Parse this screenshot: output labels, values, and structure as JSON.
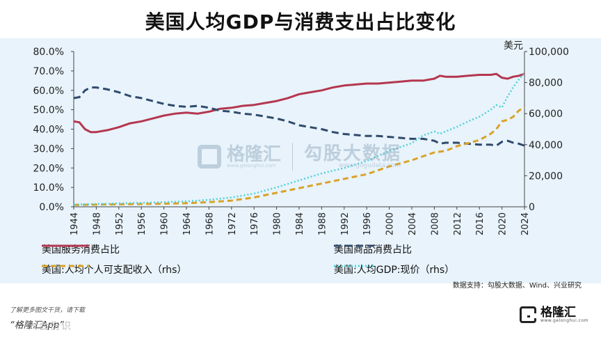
{
  "title": "美国人均GDP与消费支出占比变化",
  "unit_right": "美元",
  "source_note": "数据支持：勾股大数据、Wind、兴业研究",
  "watermark": {
    "brand_cn": "格隆汇",
    "brand_en": "www.gelonghui.com",
    "partner_cn": "勾股大数据",
    "partner_en": "www.gogudata.com"
  },
  "footer": {
    "hint": "了解更多图文干货，请下载",
    "app": "“格隆汇App”",
    "brand_faint": "人会伤识",
    "logo_cn": "格隆汇",
    "logo_en": "www.gelonghui.com"
  },
  "colors": {
    "services": "#b5364f",
    "goods": "#2f4a6b",
    "income": "#d9a228",
    "gdp": "#4fd1d9",
    "plot_bg": "#e8f3fb"
  },
  "chart_data": {
    "type": "line",
    "title": "美国人均GDP与消费支出占比变化",
    "x_ticks": [
      "1944",
      "1948",
      "1952",
      "1956",
      "1960",
      "1964",
      "1968",
      "1972",
      "1976",
      "1980",
      "1984",
      "1988",
      "1992",
      "1996",
      "2000",
      "2004",
      "2008",
      "2012",
      "2016",
      "2020",
      "2024"
    ],
    "xlim": [
      1944,
      2024
    ],
    "ylim_left": [
      0,
      80
    ],
    "ylim_right": [
      0,
      100000
    ],
    "y_ticks_left": [
      "0.0%",
      "10.0%",
      "20.0%",
      "30.0%",
      "40.0%",
      "50.0%",
      "60.0%",
      "70.0%",
      "80.0%"
    ],
    "y_ticks_right": [
      "0",
      "20,000",
      "40,000",
      "60,000",
      "80,000",
      "100,000"
    ],
    "legend_placement": "bottom",
    "series": [
      {
        "name": "美国服务消费占比",
        "axis": "left",
        "style": "solid",
        "x": [
          1944,
          1945,
          1946,
          1947,
          1948,
          1950,
          1952,
          1954,
          1956,
          1958,
          1960,
          1962,
          1964,
          1966,
          1968,
          1970,
          1972,
          1974,
          1976,
          1978,
          1980,
          1982,
          1984,
          1986,
          1988,
          1990,
          1992,
          1994,
          1996,
          1998,
          2000,
          2002,
          2004,
          2006,
          2008,
          2009,
          2010,
          2012,
          2014,
          2016,
          2018,
          2019,
          2020,
          2021,
          2022,
          2023,
          2024
        ],
        "values": [
          44,
          43.5,
          40,
          38.5,
          38.5,
          39.5,
          41,
          43,
          44,
          45.5,
          47,
          48,
          48.5,
          48,
          49,
          50.5,
          51,
          52,
          52.5,
          53.5,
          54.5,
          56,
          58,
          59,
          60,
          61.5,
          62.5,
          63,
          63.5,
          63.5,
          64,
          64.5,
          65,
          65,
          66,
          67.5,
          67,
          67,
          67.5,
          68,
          68,
          68.5,
          66.5,
          66,
          67,
          67.5,
          68.5
        ]
      },
      {
        "name": "美国商品消费占比",
        "axis": "left",
        "style": "dashed",
        "x": [
          1944,
          1945,
          1946,
          1947,
          1948,
          1950,
          1952,
          1954,
          1956,
          1958,
          1960,
          1962,
          1964,
          1966,
          1968,
          1970,
          1972,
          1974,
          1976,
          1978,
          1980,
          1982,
          1984,
          1986,
          1988,
          1990,
          1992,
          1994,
          1996,
          1998,
          2000,
          2002,
          2004,
          2006,
          2008,
          2009,
          2010,
          2012,
          2014,
          2016,
          2018,
          2019,
          2020,
          2021,
          2022,
          2023,
          2024
        ],
        "values": [
          56,
          56.5,
          60,
          61.5,
          61.5,
          60.5,
          59,
          57,
          56,
          54.5,
          53,
          52,
          51.5,
          52,
          51,
          49.5,
          49,
          48,
          47.5,
          46.5,
          45.5,
          44,
          42,
          41,
          40,
          38.5,
          37.5,
          37,
          36.5,
          36.5,
          36,
          35.5,
          35,
          35,
          34,
          32.5,
          33,
          33,
          32.5,
          32,
          32,
          31.5,
          33.5,
          34,
          33,
          32.5,
          31.5
        ]
      },
      {
        "name": "美国:人均个人可支配收入（rhs）",
        "axis": "right",
        "style": "dashed",
        "x": [
          1944,
          1948,
          1952,
          1956,
          1960,
          1964,
          1968,
          1972,
          1976,
          1980,
          1984,
          1988,
          1992,
          1996,
          2000,
          2004,
          2008,
          2010,
          2012,
          2014,
          2016,
          2018,
          2019,
          2020,
          2021,
          2022,
          2023,
          2024
        ],
        "values": [
          1200,
          1400,
          1600,
          1800,
          2000,
          2300,
          3000,
          4000,
          6000,
          9000,
          12000,
          15000,
          18000,
          21000,
          26000,
          30000,
          35000,
          36000,
          39000,
          41000,
          43000,
          47000,
          50000,
          55000,
          56000,
          58000,
          62000,
          64000
        ]
      },
      {
        "name": "美国:人均GDP:现价（rhs）",
        "axis": "right",
        "style": "dotted",
        "x": [
          1944,
          1948,
          1952,
          1956,
          1960,
          1964,
          1968,
          1972,
          1976,
          1980,
          1984,
          1988,
          1992,
          1996,
          2000,
          2004,
          2006,
          2008,
          2009,
          2010,
          2012,
          2014,
          2016,
          2018,
          2019,
          2020,
          2021,
          2022,
          2023,
          2024
        ],
        "values": [
          1500,
          1800,
          2200,
          2500,
          3000,
          3500,
          4500,
          6000,
          8500,
          12500,
          17000,
          21500,
          25000,
          29500,
          36000,
          41000,
          46000,
          48500,
          47000,
          48500,
          51500,
          55000,
          58000,
          62500,
          65500,
          64000,
          71000,
          77000,
          82000,
          86000
        ]
      }
    ]
  }
}
